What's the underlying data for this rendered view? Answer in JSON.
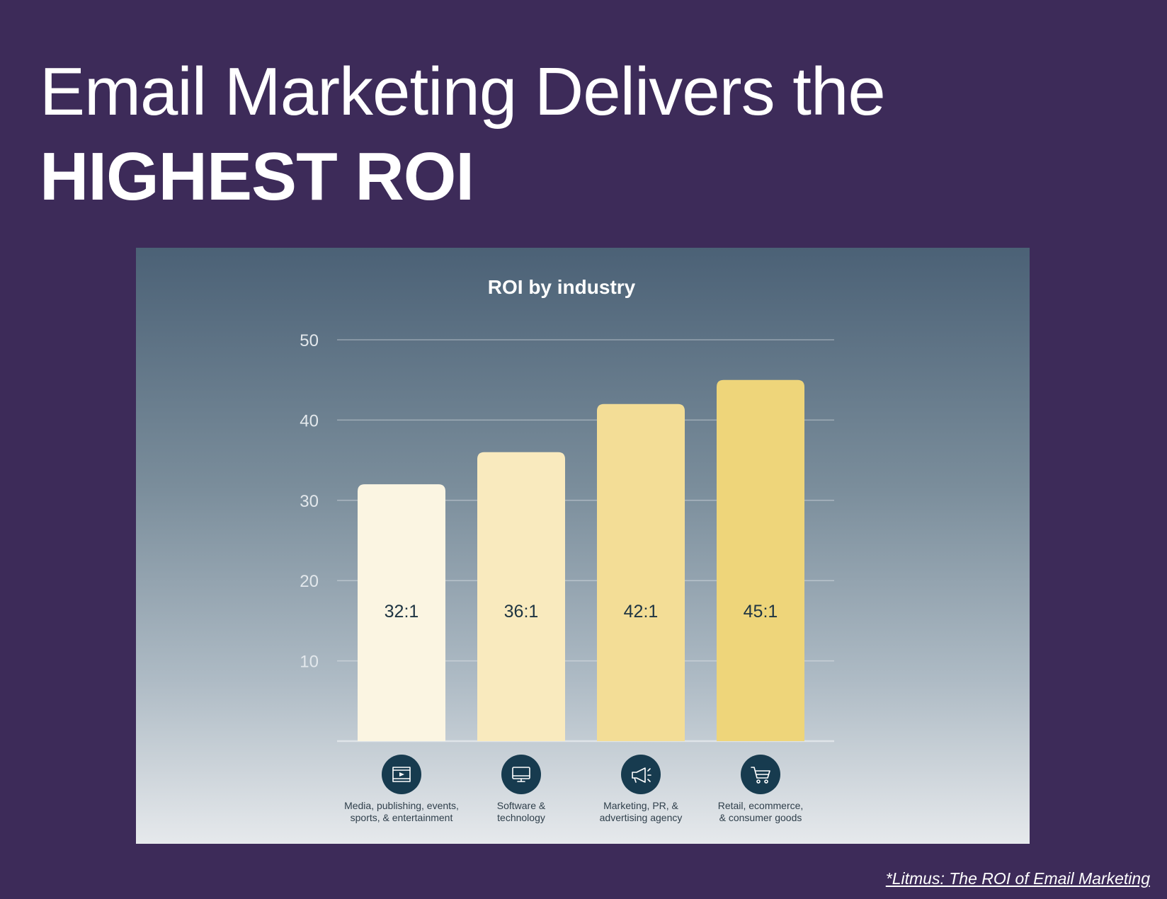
{
  "slide": {
    "title_line1": "Email Marketing Delivers the",
    "title_line2": "HIGHEST ROI",
    "source": "*Litmus: The ROI of Email Marketing"
  },
  "colors": {
    "background": "#3d2b59",
    "bar_colors": [
      "#fbf5e2",
      "#f9eabe",
      "#f3dd96",
      "#eed57a"
    ],
    "icon_circle": "#173b4f"
  },
  "chart_data": {
    "type": "bar",
    "title": "ROI by industry",
    "categories": [
      [
        "Media, publishing, events,",
        "sports, & entertainment"
      ],
      [
        "Software &",
        "technology"
      ],
      [
        "Marketing, PR, &",
        "advertising agency"
      ],
      [
        "Retail, ecommerce,",
        "& consumer goods"
      ]
    ],
    "category_icons": [
      "film-icon",
      "monitor-icon",
      "megaphone-icon",
      "cart-icon"
    ],
    "values": [
      32,
      36,
      42,
      45
    ],
    "data_labels": [
      "32:1",
      "36:1",
      "42:1",
      "45:1"
    ],
    "ylim": [
      0,
      50
    ],
    "yticks": [
      10,
      20,
      30,
      40,
      50
    ],
    "grid": true,
    "legend": "none"
  }
}
